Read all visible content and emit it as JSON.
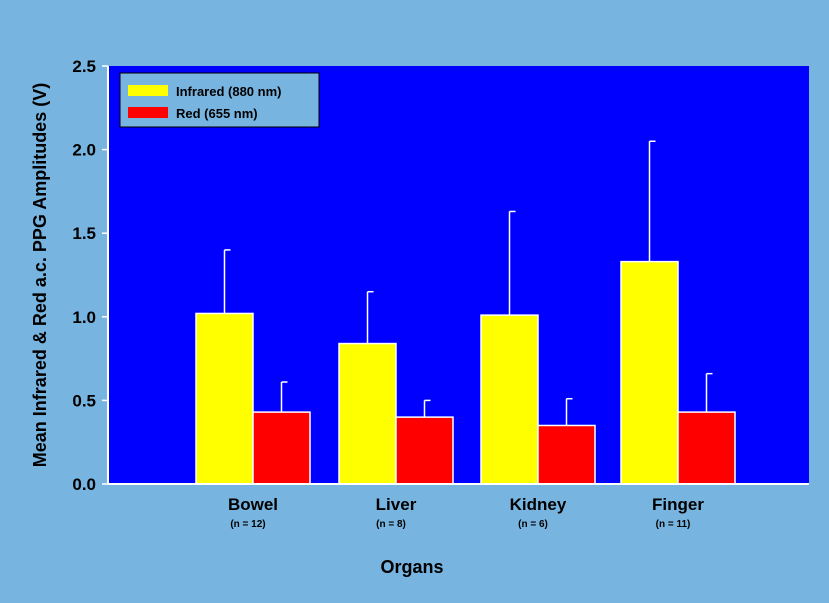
{
  "chart_data": {
    "type": "bar",
    "categories": [
      "Bowel",
      "Liver",
      "Kidney",
      "Finger"
    ],
    "category_notes": [
      "(n = 12)",
      "(n = 8)",
      "(n = 6)",
      "(n = 11)"
    ],
    "series": [
      {
        "name": "Infrared (880 nm)",
        "color": "#ffff00",
        "values": [
          1.02,
          0.84,
          1.01,
          1.33
        ],
        "error_upper": [
          1.4,
          1.15,
          1.63,
          2.05
        ]
      },
      {
        "name": "Red (655 nm)",
        "color": "#ff0000",
        "values": [
          0.43,
          0.4,
          0.35,
          0.43
        ],
        "error_upper": [
          0.61,
          0.5,
          0.51,
          0.66
        ]
      }
    ],
    "xlabel": "Organs",
    "ylabel": "Mean Infrared & Red a.c. PPG Amplitudes (V)",
    "ylim": [
      0,
      2.5
    ],
    "yticks": [
      "0.0",
      "0.5",
      "1.0",
      "1.5",
      "2.0",
      "2.5"
    ],
    "grid": false,
    "legend_position": "top-left",
    "colors": {
      "page_background": "#78b4e0",
      "plot_background": "#0000ff",
      "axis": "#ffffff",
      "error_bar": "#ffffff",
      "bar_outline": "#ffffff"
    }
  }
}
